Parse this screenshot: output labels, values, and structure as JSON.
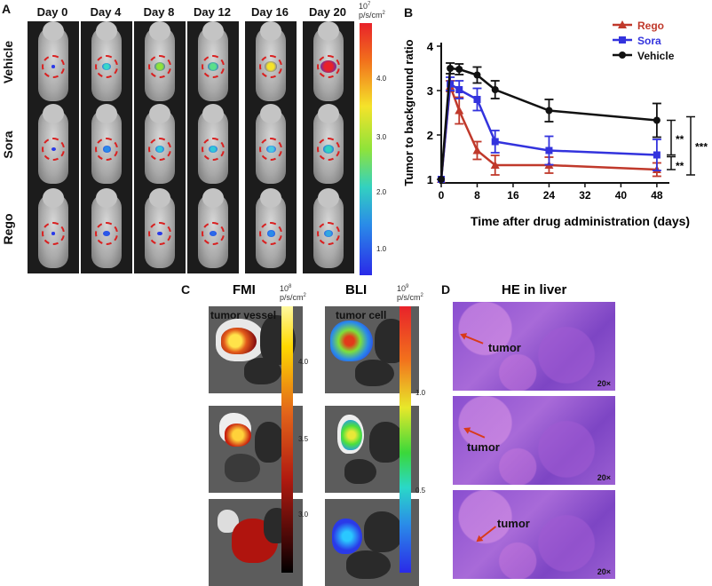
{
  "panel_a": {
    "label": "A",
    "days": [
      "Day 0",
      "Day 4",
      "Day 8",
      "Day 12",
      "Day 16",
      "Day 20"
    ],
    "rows": [
      "Vehicle",
      "Sora",
      "Rego"
    ],
    "scale_exp": "10",
    "scale_sup": "7",
    "scale_unit": "p/s/cm",
    "scale_unit_sup": "2",
    "scale_ticks": [
      "4.0",
      "3.0",
      "2.0",
      "1.0"
    ]
  },
  "chart_data": {
    "type": "line",
    "panel_label": "B",
    "title": "",
    "xlabel": "Time after drug administration (days)",
    "ylabel": "Tumor to background ratio",
    "x_ticks": [
      0,
      8,
      16,
      24,
      32,
      40,
      48
    ],
    "y_ticks": [
      1,
      2,
      3,
      4
    ],
    "xlim": [
      0,
      50
    ],
    "ylim": [
      1,
      4
    ],
    "series": [
      {
        "name": "Rego",
        "color": "#c0392b",
        "marker": "triangle",
        "x": [
          0,
          2,
          4,
          8,
          12,
          24,
          48
        ],
        "y": [
          1.0,
          3.1,
          2.55,
          1.65,
          1.32,
          1.32,
          1.22
        ],
        "err": [
          0,
          0.12,
          0.3,
          0.2,
          0.22,
          0.18,
          0.15
        ]
      },
      {
        "name": "Sora",
        "color": "#3333dd",
        "marker": "square",
        "x": [
          0,
          2,
          4,
          8,
          12,
          24,
          48
        ],
        "y": [
          1.0,
          3.15,
          3.02,
          2.8,
          1.85,
          1.65,
          1.55
        ],
        "err": [
          0,
          0.15,
          0.2,
          0.25,
          0.25,
          0.32,
          0.35
        ]
      },
      {
        "name": "Vehicle",
        "color": "#111111",
        "marker": "circle",
        "x": [
          0,
          2,
          4,
          8,
          12,
          24,
          48
        ],
        "y": [
          1.0,
          3.5,
          3.48,
          3.35,
          3.02,
          2.55,
          2.33
        ],
        "err": [
          0,
          0.12,
          0.12,
          0.18,
          0.2,
          0.25,
          0.38
        ]
      }
    ],
    "significance": [
      {
        "label": "**",
        "between": "Vehicle-Sora"
      },
      {
        "label": "**",
        "between": "Sora-Rego"
      },
      {
        "label": "***",
        "between": "Vehicle-Rego"
      }
    ],
    "legend_position": "top-right"
  },
  "panel_c": {
    "label": "C",
    "fmi_title": "FMI",
    "bli_title": "BLI",
    "fmi_note": "tumor vessel",
    "bli_note": "tumor cell",
    "fmi_scale_exp": "10",
    "fmi_scale_sup": "8",
    "bli_scale_exp": "10",
    "bli_scale_sup": "9",
    "scale_unit": "p/s/cm",
    "scale_unit_sup": "2",
    "fmi_ticks": [
      "4.0",
      "3.5",
      "3.0"
    ],
    "bli_ticks": [
      "1.0",
      "0.5"
    ]
  },
  "panel_d": {
    "label": "D",
    "title": "HE in liver",
    "tumor_label": "tumor",
    "magnification": "20×"
  }
}
